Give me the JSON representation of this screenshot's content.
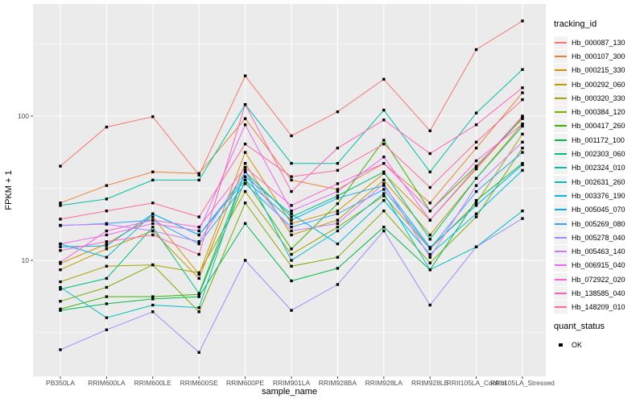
{
  "chart": {
    "chart_data": {
      "type": "line",
      "title": "",
      "xlabel": "sample_name",
      "ylabel": "FPKM + 1",
      "y_scale": "log10",
      "y_ticks": [
        10,
        100
      ],
      "y_tick_labels": [
        "10",
        "100"
      ],
      "y_minor_breaks": [
        3.1623,
        31.623,
        316.23
      ],
      "y_range_approx": [
        1.6,
        560
      ],
      "grid": "on",
      "legend_position": "right",
      "marker": {
        "shape": "square",
        "color": "#000000",
        "meaning": "quant_status OK"
      },
      "categories": [
        "PB350LA",
        "RRIM600LA",
        "RRIM600LE",
        "RRIM600SE",
        "RRIM600PE",
        "RRIM901LA",
        "RRIM928BA",
        "RRIM928LA",
        "RRIM928LE",
        "RRII105LA_Control",
        "RRII105LA_Stressed"
      ],
      "series": [
        {
          "name": "Hb_000087_130",
          "color": "#F8766D",
          "values": [
            45,
            84,
            99,
            39,
            190,
            73,
            107,
            180,
            79,
            289,
            456
          ]
        },
        {
          "name": "Hb_000107_300",
          "color": "#EA8331",
          "values": [
            25,
            33,
            41,
            40,
            96,
            36,
            31,
            47,
            25,
            60,
            145
          ]
        },
        {
          "name": "Hb_000215_330",
          "color": "#D89000",
          "values": [
            9.5,
            13,
            20,
            8,
            56,
            18,
            22,
            40,
            19,
            43,
            98
          ]
        },
        {
          "name": "Hb_000292_060",
          "color": "#C09B00",
          "values": [
            8.6,
            12,
            16,
            7.5,
            47,
            15,
            19,
            36,
            15,
            37,
            88
          ]
        },
        {
          "name": "Hb_000320_330",
          "color": "#A3A500",
          "values": [
            7.1,
            9.1,
            9.3,
            8.2,
            30,
            11,
            17,
            28,
            12,
            25,
            75
          ]
        },
        {
          "name": "Hb_000384_120",
          "color": "#7CAE00",
          "values": [
            5.2,
            6.5,
            9.3,
            4.4,
            25,
            9.1,
            10.5,
            22,
            9.6,
            20,
            60
          ]
        },
        {
          "name": "Hb_000417_260",
          "color": "#39B600",
          "values": [
            4.6,
            5.6,
            5.6,
            5.8,
            36,
            12,
            24.7,
            68,
            22,
            45,
            96
          ]
        },
        {
          "name": "Hb_001172_100",
          "color": "#00BB4E",
          "values": [
            4.5,
            5.0,
            5.4,
            5.6,
            18,
            7.2,
            8.8,
            17,
            8.6,
            26,
            47
          ]
        },
        {
          "name": "Hb_002303_060",
          "color": "#00BF7D",
          "values": [
            6.3,
            7.5,
            17,
            5.9,
            41,
            20,
            28,
            41,
            14,
            37,
            85
          ]
        },
        {
          "name": "Hb_002324_010",
          "color": "#00C1A3",
          "values": [
            24,
            26.6,
            36,
            36,
            120,
            47,
            47,
            110,
            41,
            105,
            210
          ]
        },
        {
          "name": "Hb_002631_260",
          "color": "#00BFC4",
          "values": [
            6.5,
            4.0,
            4.9,
            4.7,
            42,
            10,
            16,
            29,
            8.6,
            12.4,
            22
          ]
        },
        {
          "name": "Hb_003376_190",
          "color": "#00BAE0",
          "values": [
            13,
            10.5,
            21,
            15,
            38,
            21,
            13,
            26,
            11,
            21,
            42
          ]
        },
        {
          "name": "Hb_005045_070",
          "color": "#00B0F6",
          "values": [
            12.4,
            12.6,
            21,
            15,
            36,
            19,
            27,
            33,
            12.3,
            24,
            46
          ]
        },
        {
          "name": "Hb_005269_080",
          "color": "#35A2FF",
          "values": [
            17.4,
            18,
            19,
            13,
            34,
            17,
            21,
            31,
            12,
            30,
            56
          ]
        },
        {
          "name": "Hb_005278_040",
          "color": "#9590FF",
          "values": [
            2.4,
            3.3,
            4.4,
            2.3,
            10,
            4.5,
            6.8,
            16,
            4.9,
            12.4,
            19.5
          ]
        },
        {
          "name": "Hb_005463_140",
          "color": "#C77CFF",
          "values": [
            17.5,
            17.8,
            16,
            13.5,
            41,
            16,
            18,
            34,
            10.5,
            33,
            66
          ]
        },
        {
          "name": "Hb_006915_040",
          "color": "#E76BF3",
          "values": [
            13,
            15,
            18,
            16,
            87,
            22,
            30,
            52,
            19,
            44,
            100
          ]
        },
        {
          "name": "Hb_072922_020",
          "color": "#FA62DB",
          "values": [
            9.7,
            16,
            19,
            17,
            44,
            24,
            34,
            47,
            22,
            49,
            88
          ]
        },
        {
          "name": "Hb_138585_040",
          "color": "#FF62BC",
          "values": [
            11.7,
            13.5,
            15,
            11,
            120,
            30,
            60,
            94,
            55,
            87,
            157
          ]
        },
        {
          "name": "Hb_148209_010",
          "color": "#FF6A98",
          "values": [
            19.3,
            22,
            25,
            20,
            64,
            38,
            42,
            64,
            32,
            66,
            130
          ]
        }
      ]
    },
    "legend": {
      "series_title": "tracking_id",
      "status_title": "quant_status",
      "status_items": [
        {
          "label": "OK",
          "marker": "black-square"
        }
      ]
    },
    "style": {
      "panel_bg": "#EBEBEB",
      "grid_color": "#FFFFFF",
      "tick_text_color": "#4D4D4D",
      "tick_mark_color": "#333333",
      "legend_key_bg": "#F2F2F2"
    }
  }
}
